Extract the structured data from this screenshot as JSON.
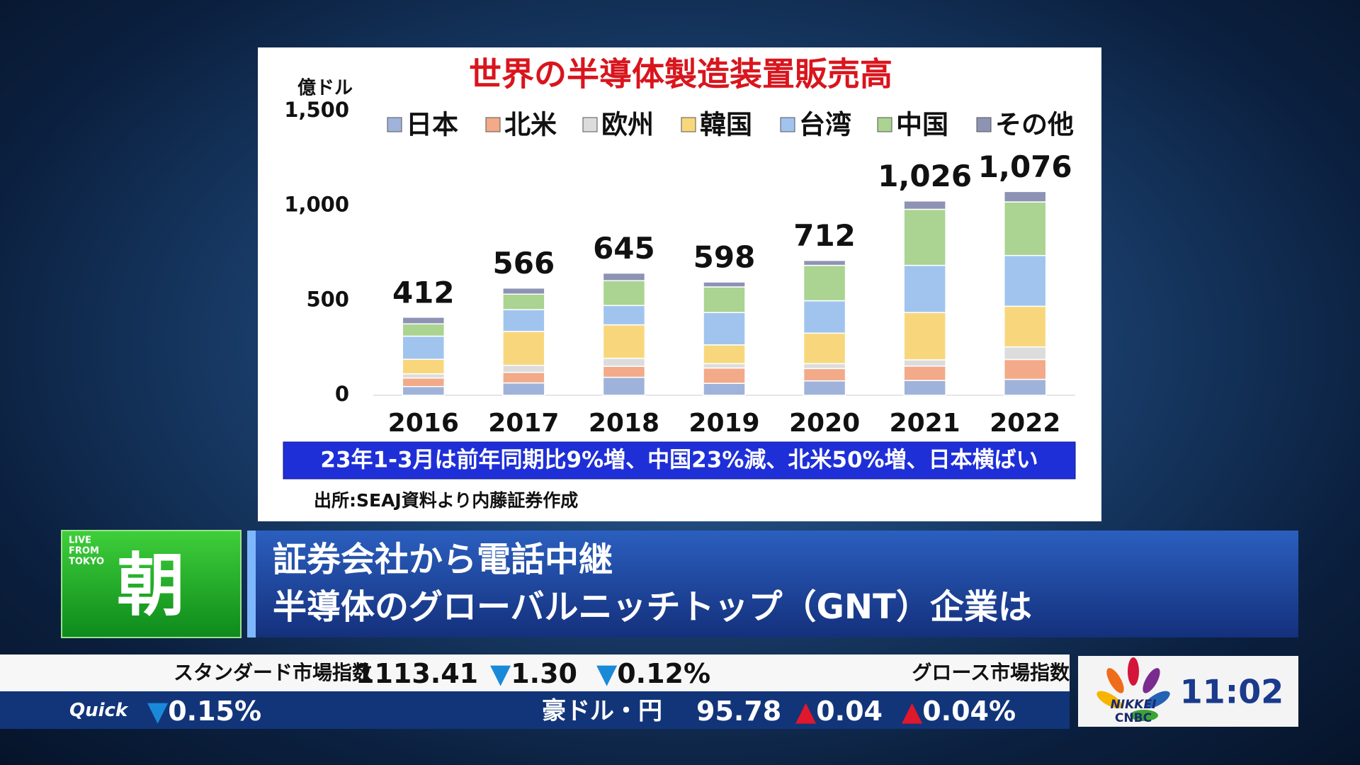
{
  "chart_data": {
    "type": "bar",
    "stacked": true,
    "title": "世界の半導体製造装置販売高",
    "y_label": "億ドル",
    "categories": [
      "2016",
      "2017",
      "2018",
      "2019",
      "2020",
      "2021",
      "2022"
    ],
    "series": [
      {
        "name": "日本",
        "color": "#9fb3da",
        "values": [
          46,
          65,
          95,
          63,
          76,
          78,
          84
        ]
      },
      {
        "name": "北米",
        "color": "#f2aa88",
        "values": [
          45,
          56,
          58,
          81,
          65,
          76,
          105
        ]
      },
      {
        "name": "欧州",
        "color": "#dcdcdc",
        "values": [
          22,
          37,
          42,
          23,
          26,
          33,
          66
        ]
      },
      {
        "name": "韓国",
        "color": "#f8d77c",
        "values": [
          77,
          179,
          177,
          99,
          161,
          250,
          215
        ]
      },
      {
        "name": "台湾",
        "color": "#a0c4ee",
        "values": [
          122,
          115,
          102,
          171,
          171,
          249,
          268
        ]
      },
      {
        "name": "中国",
        "color": "#abd391",
        "values": [
          65,
          82,
          131,
          135,
          187,
          296,
          283
        ]
      },
      {
        "name": "その他",
        "color": "#8d93b4",
        "values": [
          35,
          32,
          40,
          26,
          26,
          44,
          55
        ]
      }
    ],
    "totals": [
      412,
      566,
      645,
      598,
      712,
      1026,
      1076
    ],
    "total_labels": [
      "412",
      "566",
      "645",
      "598",
      "712",
      "1,026",
      "1,076"
    ],
    "ylim": [
      0,
      1500
    ],
    "yticks": [
      0,
      500,
      {
        "value": 1000,
        "label": "1,000"
      },
      {
        "value": 1500,
        "label": "1,500"
      }
    ],
    "grid": false,
    "legend": "top",
    "note": "23年1-3月は前年同期比9%増、中国23%減、北米50%増、日本横ばい",
    "source": "出所:SEAJ資料より内藤証券作成"
  },
  "program": {
    "badge": [
      "LIVE",
      "FROM",
      "TOKYO"
    ],
    "name": "朝",
    "headline": [
      "証券会社から電話中継",
      "半導体のグローバルニッチトップ（GNT）企業は"
    ]
  },
  "ticker": {
    "index_name": "スタンダード市場指数",
    "index_value": "1113.41",
    "index_change": "▼1.30",
    "index_change_pct": "▼0.12%",
    "next_name": "グロース市場指数",
    "source_name": "Quick",
    "prev_change_pct": "▼0.15%",
    "fx_name": "豪ドル・円",
    "fx_value": "95.78",
    "fx_change": "▲0.04",
    "fx_change_pct": "▲0.04%"
  },
  "logo": {
    "line1": "NIKKEI",
    "line2": "CNBC"
  },
  "clock": "11:02"
}
